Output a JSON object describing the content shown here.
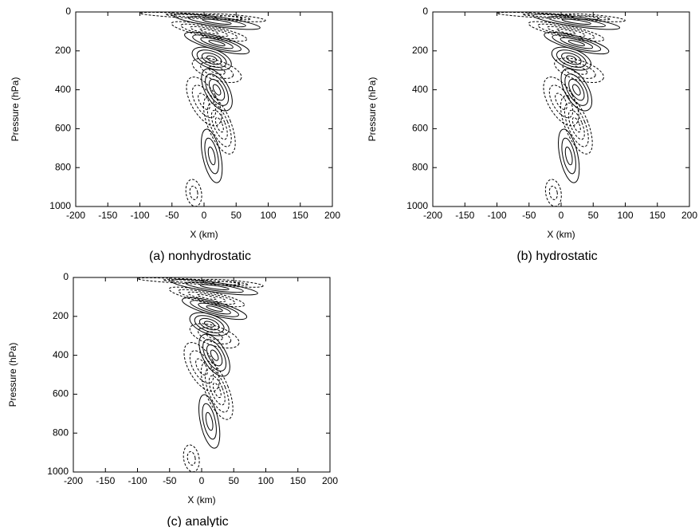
{
  "chart_data": [
    {
      "type": "contour",
      "caption": "(a) nonhydrostatic",
      "xlabel": "X (km)",
      "ylabel": "Pressure (hPa)",
      "xlim": [
        -200,
        200
      ],
      "ylim": [
        1000,
        0
      ],
      "xticks": [
        -200,
        -150,
        -100,
        -50,
        0,
        50,
        100,
        150,
        200
      ],
      "yticks": [
        0,
        200,
        400,
        600,
        800,
        1000
      ]
    },
    {
      "type": "contour",
      "caption": "(b) hydrostatic",
      "xlabel": "X (km)",
      "ylabel": "Pressure (hPa)",
      "xlim": [
        -200,
        200
      ],
      "ylim": [
        1000,
        0
      ],
      "xticks": [
        -200,
        -150,
        -100,
        -50,
        0,
        50,
        100,
        150,
        200
      ],
      "yticks": [
        0,
        200,
        400,
        600,
        800,
        1000
      ]
    },
    {
      "type": "contour",
      "caption": "(c) analytic",
      "xlabel": "X (km)",
      "ylabel": "Pressure (hPa)",
      "xlim": [
        -200,
        200
      ],
      "ylim": [
        1000,
        0
      ],
      "xticks": [
        -200,
        -150,
        -100,
        -50,
        0,
        50,
        100,
        150,
        200
      ],
      "yticks": [
        0,
        200,
        400,
        600,
        800,
        1000
      ]
    }
  ]
}
